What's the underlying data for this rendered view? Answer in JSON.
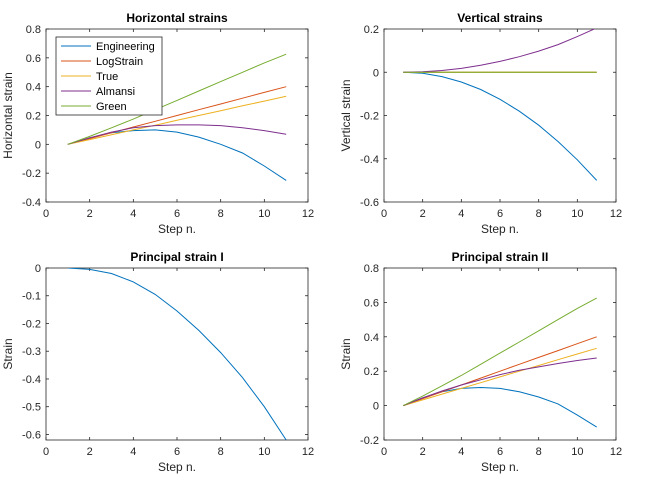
{
  "chart_data": [
    {
      "type": "line",
      "title": "Horizontal strains",
      "xlabel": "Step n.",
      "ylabel": "Horizontal strain",
      "xlim": [
        0,
        12
      ],
      "ylim": [
        -0.4,
        0.8
      ],
      "xticks": [
        0,
        2,
        4,
        6,
        8,
        10,
        12
      ],
      "yticks": [
        -0.4,
        -0.2,
        0,
        0.2,
        0.4,
        0.6,
        0.8
      ],
      "ytick_labels": [
        "-0.4",
        "-0.2",
        "0",
        "0.2",
        "0.4",
        "0.6",
        "0.8"
      ],
      "legend": "top-left",
      "x": [
        1,
        2,
        3,
        4,
        5,
        6,
        7,
        8,
        9,
        10,
        11
      ],
      "series": [
        {
          "name": "Engineering",
          "color": "#0072BD",
          "values": [
            0,
            0.045,
            0.08,
            0.095,
            0.1,
            0.085,
            0.05,
            0.0,
            -0.06,
            -0.15,
            -0.25
          ]
        },
        {
          "name": "LogStrain",
          "color": "#D95319",
          "values": [
            0,
            0.04,
            0.08,
            0.12,
            0.16,
            0.2,
            0.24,
            0.28,
            0.32,
            0.36,
            0.4
          ]
        },
        {
          "name": "True",
          "color": "#EDB120",
          "values": [
            0,
            0.033,
            0.067,
            0.1,
            0.133,
            0.167,
            0.2,
            0.233,
            0.267,
            0.3,
            0.333
          ]
        },
        {
          "name": "Almansi",
          "color": "#7E2F8E",
          "values": [
            0,
            0.045,
            0.085,
            0.115,
            0.13,
            0.135,
            0.135,
            0.13,
            0.115,
            0.095,
            0.07
          ]
        },
        {
          "name": "Green",
          "color": "#77AC30",
          "values": [
            0,
            0.055,
            0.115,
            0.175,
            0.24,
            0.305,
            0.37,
            0.435,
            0.5,
            0.565,
            0.625
          ]
        }
      ]
    },
    {
      "type": "line",
      "title": "Vertical strains",
      "xlabel": "Step n.",
      "ylabel": "Vertical strain",
      "xlim": [
        0,
        12
      ],
      "ylim": [
        -0.6,
        0.2
      ],
      "xticks": [
        0,
        2,
        4,
        6,
        8,
        10,
        12
      ],
      "yticks": [
        -0.6,
        -0.4,
        -0.2,
        0,
        0.2
      ],
      "ytick_labels": [
        "-0.6",
        "-0.4",
        "-0.2",
        "0",
        "0.2"
      ],
      "x": [
        1,
        2,
        3,
        4,
        5,
        6,
        7,
        8,
        9,
        10,
        11
      ],
      "series": [
        {
          "color": "#0072BD",
          "values": [
            0,
            -0.005,
            -0.02,
            -0.045,
            -0.08,
            -0.125,
            -0.18,
            -0.245,
            -0.32,
            -0.405,
            -0.5
          ]
        },
        {
          "color": "#D95319",
          "values": [
            0,
            0,
            0,
            0,
            0,
            0,
            0,
            0,
            0,
            0,
            0
          ]
        },
        {
          "color": "#EDB120",
          "values": [
            0,
            0,
            0,
            0,
            0,
            0,
            0,
            0,
            0,
            0,
            0
          ]
        },
        {
          "color": "#7E2F8E",
          "values": [
            0,
            0.002,
            0.008,
            0.018,
            0.032,
            0.05,
            0.072,
            0.098,
            0.128,
            0.165,
            0.205
          ]
        },
        {
          "color": "#77AC30",
          "values": [
            0,
            0,
            0,
            0,
            0,
            0,
            0,
            0,
            0,
            0,
            0
          ]
        }
      ]
    },
    {
      "type": "line",
      "title": "Principal strain I",
      "xlabel": "Step n.",
      "ylabel": "Strain",
      "xlim": [
        0,
        12
      ],
      "ylim": [
        -0.62,
        0
      ],
      "xticks": [
        0,
        2,
        4,
        6,
        8,
        10,
        12
      ],
      "yticks": [
        -0.6,
        -0.5,
        -0.4,
        -0.3,
        -0.2,
        -0.1,
        0
      ],
      "ytick_labels": [
        "-0.6",
        "-0.5",
        "-0.4",
        "-0.3",
        "-0.2",
        "-0.1",
        "0"
      ],
      "x": [
        1,
        2,
        3,
        4,
        5,
        6,
        7,
        8,
        9,
        10,
        11
      ],
      "series": [
        {
          "color": "#0072BD",
          "values": [
            0,
            -0.005,
            -0.02,
            -0.05,
            -0.095,
            -0.155,
            -0.225,
            -0.305,
            -0.395,
            -0.5,
            -0.62
          ]
        }
      ]
    },
    {
      "type": "line",
      "title": "Principal strain II",
      "xlabel": "Step n.",
      "ylabel": "Strain",
      "xlim": [
        0,
        12
      ],
      "ylim": [
        -0.2,
        0.8
      ],
      "xticks": [
        0,
        2,
        4,
        6,
        8,
        10,
        12
      ],
      "yticks": [
        -0.2,
        0,
        0.2,
        0.4,
        0.6,
        0.8
      ],
      "ytick_labels": [
        "-0.2",
        "0",
        "0.2",
        "0.4",
        "0.6",
        "0.8"
      ],
      "x": [
        1,
        2,
        3,
        4,
        5,
        6,
        7,
        8,
        9,
        10,
        11
      ],
      "series": [
        {
          "color": "#0072BD",
          "values": [
            0,
            0.045,
            0.08,
            0.1,
            0.105,
            0.1,
            0.08,
            0.05,
            0.01,
            -0.055,
            -0.125
          ]
        },
        {
          "color": "#D95319",
          "values": [
            0,
            0.04,
            0.08,
            0.12,
            0.16,
            0.2,
            0.24,
            0.28,
            0.32,
            0.36,
            0.4
          ]
        },
        {
          "color": "#EDB120",
          "values": [
            0,
            0.033,
            0.067,
            0.1,
            0.133,
            0.167,
            0.2,
            0.233,
            0.267,
            0.3,
            0.333
          ]
        },
        {
          "color": "#7E2F8E",
          "values": [
            0,
            0.045,
            0.085,
            0.12,
            0.15,
            0.18,
            0.205,
            0.225,
            0.245,
            0.262,
            0.277
          ]
        },
        {
          "color": "#77AC30",
          "values": [
            0,
            0.055,
            0.115,
            0.175,
            0.24,
            0.305,
            0.37,
            0.435,
            0.5,
            0.565,
            0.625
          ]
        }
      ]
    }
  ]
}
